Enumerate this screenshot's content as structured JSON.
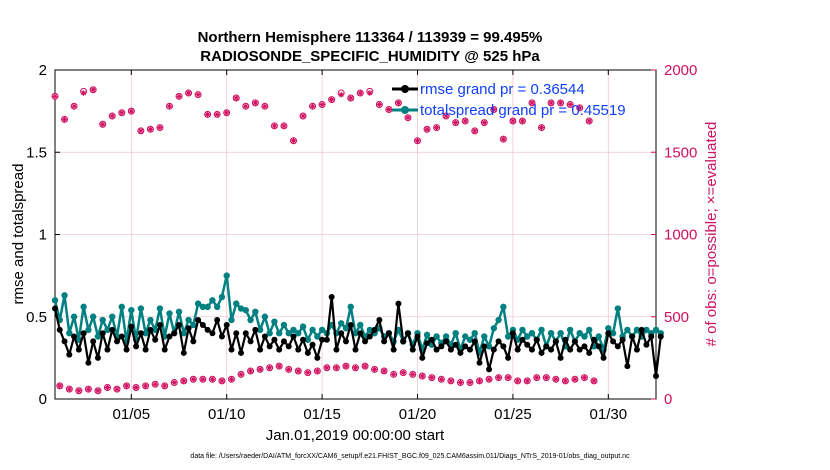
{
  "colors": {
    "rmse": "#000000",
    "spread": "#008080",
    "obs": "#d01060",
    "grid": "#f0c8d8",
    "legend_text": "#1040ff"
  },
  "chart_data": {
    "type": "line",
    "title_line1": "Northern Hemisphere 113364 / 113939 = 99.495%",
    "title_line2": "RADIOSONDE_SPECIFIC_HUMIDITY @ 525 hPa",
    "xlabel": "Jan.01,2019 00:00:00 start",
    "ylabel_left": "rmse and totalspread",
    "ylabel_right": "# of obs: o=possible; ×=evaluated",
    "footer": "data file: /Users/raeder/DAI/ATM_forcXX/CAM6_setup/f.e21.FHIST_BGC.f09_025.CAM6assim.011/Diags_NTrS_2019-01/obs_diag_output.nc",
    "xlim": [
      1,
      32.5
    ],
    "ylim_left": [
      0,
      2
    ],
    "ylim_right": [
      0,
      2000
    ],
    "x_ticks": [
      5,
      10,
      15,
      20,
      25,
      30
    ],
    "x_tick_labels": [
      "01/05",
      "01/10",
      "01/15",
      "01/20",
      "01/25",
      "01/30"
    ],
    "y_left_ticks": [
      0,
      0.5,
      1,
      1.5,
      2
    ],
    "y_left_tick_labels": [
      "0",
      "0.5",
      "1",
      "1.5",
      "2"
    ],
    "y_right_ticks": [
      0,
      500,
      1000,
      1500,
      2000
    ],
    "y_right_tick_labels": [
      "0",
      "500",
      "1000",
      "1500",
      "2000"
    ],
    "legend": {
      "rmse": "rmse grand pr = 0.36544",
      "spread": "totalspread grand pr = 0.45519"
    },
    "x_start": 1.0,
    "x_step": 0.25,
    "series": [
      {
        "name": "rmse",
        "values": [
          0.55,
          0.42,
          0.35,
          0.27,
          0.38,
          0.3,
          0.4,
          0.22,
          0.35,
          0.25,
          0.4,
          0.3,
          0.42,
          0.35,
          0.38,
          0.3,
          0.44,
          0.32,
          0.4,
          0.3,
          0.42,
          0.36,
          0.45,
          0.3,
          0.38,
          0.4,
          0.45,
          0.28,
          0.43,
          0.35,
          0.48,
          0.45,
          0.42,
          0.4,
          0.48,
          0.38,
          0.45,
          0.3,
          0.4,
          0.28,
          0.4,
          0.35,
          0.42,
          0.3,
          0.38,
          0.32,
          0.36,
          0.3,
          0.35,
          0.32,
          0.38,
          0.3,
          0.36,
          0.28,
          0.33,
          0.25,
          0.36,
          0.36,
          0.62,
          0.3,
          0.4,
          0.35,
          0.45,
          0.3,
          0.4,
          0.35,
          0.38,
          0.42,
          0.48,
          0.35,
          0.4,
          0.3,
          0.58,
          0.35,
          0.4,
          0.3,
          0.38,
          0.25,
          0.34,
          0.36,
          0.3,
          0.32,
          0.35,
          0.3,
          0.33,
          0.28,
          0.32,
          0.3,
          0.35,
          0.22,
          0.32,
          0.18,
          0.3,
          0.35,
          0.32,
          0.25,
          0.4,
          0.3,
          0.36,
          0.33,
          0.3,
          0.36,
          0.28,
          0.32,
          0.3,
          0.35,
          0.25,
          0.36,
          0.3,
          0.35,
          0.3,
          0.32,
          0.28,
          0.36,
          0.32,
          0.25,
          0.4,
          0.35,
          0.32,
          0.36,
          0.2,
          0.38,
          0.3,
          0.42,
          0.33,
          0.38,
          0.14,
          0.38
        ]
      },
      {
        "name": "totalspread",
        "values": [
          0.6,
          0.48,
          0.63,
          0.4,
          0.5,
          0.36,
          0.56,
          0.42,
          0.5,
          0.38,
          0.48,
          0.42,
          0.5,
          0.38,
          0.56,
          0.35,
          0.54,
          0.36,
          0.55,
          0.4,
          0.48,
          0.42,
          0.55,
          0.38,
          0.52,
          0.4,
          0.53,
          0.4,
          0.48,
          0.45,
          0.58,
          0.56,
          0.56,
          0.6,
          0.56,
          0.62,
          0.75,
          0.48,
          0.58,
          0.55,
          0.54,
          0.48,
          0.53,
          0.42,
          0.5,
          0.4,
          0.47,
          0.4,
          0.45,
          0.4,
          0.42,
          0.4,
          0.44,
          0.36,
          0.42,
          0.38,
          0.42,
          0.4,
          0.45,
          0.4,
          0.46,
          0.43,
          0.56,
          0.4,
          0.45,
          0.38,
          0.42,
          0.4,
          0.43,
          0.38,
          0.4,
          0.35,
          0.42,
          0.35,
          0.4,
          0.33,
          0.4,
          0.3,
          0.39,
          0.33,
          0.38,
          0.34,
          0.38,
          0.33,
          0.4,
          0.3,
          0.38,
          0.36,
          0.4,
          0.28,
          0.38,
          0.32,
          0.43,
          0.48,
          0.56,
          0.38,
          0.42,
          0.36,
          0.42,
          0.38,
          0.4,
          0.36,
          0.42,
          0.32,
          0.4,
          0.35,
          0.4,
          0.32,
          0.42,
          0.35,
          0.4,
          0.38,
          0.42,
          0.32,
          0.38,
          0.3,
          0.43,
          0.4,
          0.55,
          0.38,
          0.42,
          0.38,
          0.42,
          0.38,
          0.42,
          0.4,
          0.42,
          0.4
        ]
      },
      {
        "name": "obs_possible",
        "values": [
          1840,
          80,
          1700,
          60,
          1780,
          50,
          1870,
          60,
          1880,
          50,
          1670,
          70,
          1720,
          60,
          1740,
          80,
          1750,
          70,
          1630,
          80,
          1640,
          90,
          1650,
          80,
          1780,
          100,
          1840,
          110,
          1860,
          120,
          1850,
          120,
          1730,
          120,
          1730,
          110,
          1740,
          120,
          1830,
          150,
          1780,
          170,
          1800,
          180,
          1780,
          190,
          1660,
          200,
          1660,
          180,
          1570,
          170,
          1720,
          160,
          1780,
          170,
          1790,
          190,
          1820,
          190,
          1860,
          200,
          1830,
          190,
          1860,
          200,
          1870,
          180,
          1790,
          170,
          1760,
          150,
          1800,
          160,
          1710,
          150,
          1570,
          140,
          1640,
          130,
          1650,
          120,
          1720,
          110,
          1680,
          100,
          1690,
          100,
          1630,
          110,
          1680,
          120,
          1760,
          130,
          1580,
          130,
          1690,
          110,
          1690,
          110,
          1800,
          130,
          1650,
          130,
          1800,
          120,
          1800,
          110,
          1790,
          120,
          1770,
          130,
          1690,
          110
        ]
      },
      {
        "name": "obs_evaluated",
        "values": [
          1840,
          80,
          1700,
          60,
          1780,
          50,
          1860,
          60,
          1880,
          50,
          1670,
          70,
          1720,
          60,
          1740,
          80,
          1750,
          70,
          1630,
          80,
          1640,
          90,
          1650,
          80,
          1780,
          100,
          1840,
          110,
          1860,
          120,
          1850,
          120,
          1730,
          120,
          1730,
          110,
          1740,
          120,
          1830,
          150,
          1780,
          170,
          1800,
          180,
          1780,
          190,
          1660,
          200,
          1660,
          180,
          1570,
          170,
          1720,
          160,
          1780,
          170,
          1790,
          190,
          1820,
          190,
          1850,
          200,
          1830,
          190,
          1860,
          200,
          1860,
          180,
          1790,
          170,
          1760,
          150,
          1800,
          160,
          1710,
          150,
          1570,
          140,
          1640,
          130,
          1650,
          120,
          1720,
          110,
          1680,
          100,
          1690,
          100,
          1630,
          110,
          1680,
          120,
          1760,
          130,
          1580,
          130,
          1690,
          110,
          1690,
          110,
          1800,
          130,
          1650,
          130,
          1800,
          120,
          1800,
          110,
          1790,
          120,
          1770,
          130,
          1690,
          110
        ]
      }
    ]
  }
}
